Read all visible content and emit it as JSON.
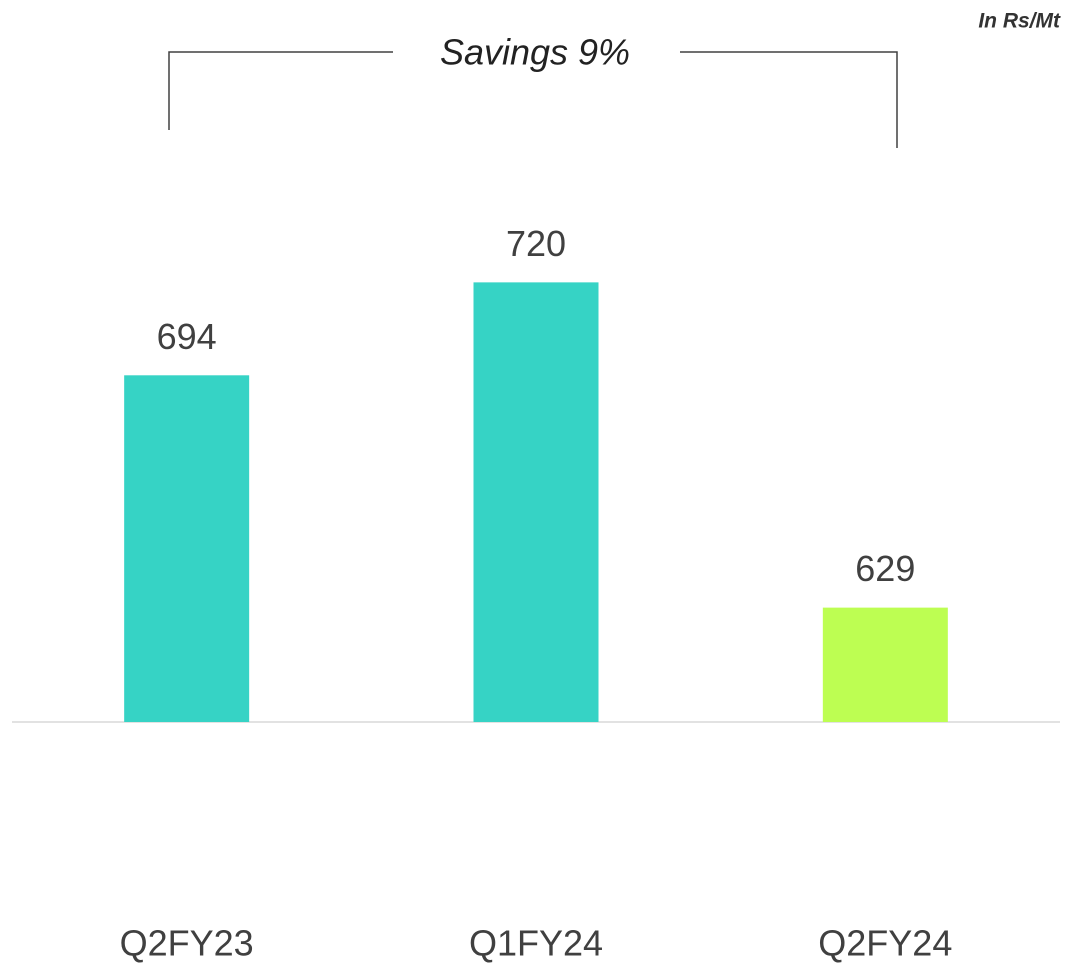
{
  "chart_data": {
    "type": "bar",
    "annotation": "Savings 9%",
    "unit_label": "In Rs/Mt",
    "categories": [
      "Q2FY23",
      "Q1FY24",
      "Q2FY24"
    ],
    "values": [
      694,
      720,
      629
    ],
    "colors": [
      "#36d3c5",
      "#36d3c5",
      "#bdfe52"
    ],
    "ylim": [
      597,
      799
    ]
  }
}
